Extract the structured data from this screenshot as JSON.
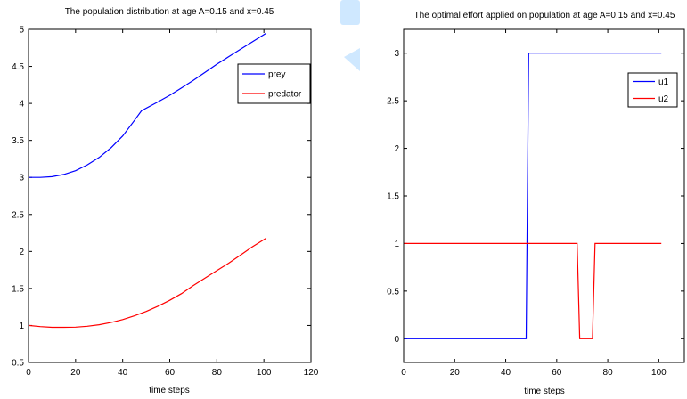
{
  "chart_data": [
    {
      "type": "line",
      "title": "The population distribution at age A=0.15 and x=0.45",
      "xlabel": "time steps",
      "ylabel": "",
      "xlim": [
        0,
        120
      ],
      "ylim": [
        0.5,
        5
      ],
      "xticks": [
        0,
        20,
        40,
        60,
        80,
        100,
        120
      ],
      "xtick_labels": [
        "0",
        "20",
        "40",
        "60",
        "80",
        "100",
        "120"
      ],
      "yticks": [
        0.5,
        1,
        1.5,
        2,
        2.5,
        3,
        3.5,
        4,
        4.5,
        5
      ],
      "ytick_labels": [
        "0.5",
        "1",
        "1.5",
        "2",
        "2.5",
        "3",
        "3.5",
        "4",
        "4.5",
        "5"
      ],
      "legend_position": "top-right",
      "grid": false,
      "series": [
        {
          "name": "prey",
          "color": "#0000ff",
          "x": [
            0,
            5,
            10,
            15,
            20,
            25,
            30,
            35,
            40,
            45,
            48,
            55,
            60,
            65,
            70,
            75,
            80,
            85,
            90,
            95,
            101
          ],
          "y": [
            3.0,
            3.0,
            3.01,
            3.04,
            3.09,
            3.17,
            3.27,
            3.4,
            3.56,
            3.77,
            3.9,
            4.02,
            4.11,
            4.21,
            4.31,
            4.42,
            4.53,
            4.63,
            4.73,
            4.83,
            4.95
          ]
        },
        {
          "name": "predator",
          "color": "#ff0000",
          "x": [
            0,
            5,
            10,
            15,
            20,
            25,
            30,
            35,
            40,
            45,
            50,
            55,
            60,
            65,
            70,
            75,
            80,
            85,
            90,
            95,
            101
          ],
          "y": [
            1.0,
            0.985,
            0.975,
            0.975,
            0.978,
            0.99,
            1.01,
            1.04,
            1.08,
            1.13,
            1.19,
            1.26,
            1.34,
            1.43,
            1.54,
            1.64,
            1.74,
            1.84,
            1.95,
            2.06,
            2.18
          ]
        }
      ]
    },
    {
      "type": "line",
      "title": "The optimal effort applied on population at age A=0.15 and x=0.45",
      "xlabel": "time steps",
      "ylabel": "",
      "xlim": [
        0,
        110
      ],
      "ylim": [
        -0.25,
        3.25
      ],
      "xticks": [
        0,
        20,
        40,
        60,
        80,
        100
      ],
      "xtick_labels": [
        "0",
        "20",
        "40",
        "60",
        "80",
        "100"
      ],
      "yticks": [
        0,
        0.5,
        1,
        1.5,
        2,
        2.5,
        3
      ],
      "ytick_labels": [
        "0",
        "0.5",
        "1",
        "1.5",
        "2",
        "2.5",
        "3"
      ],
      "legend_position": "top-right",
      "grid": false,
      "series": [
        {
          "name": "u1",
          "color": "#0000ff",
          "x": [
            0,
            48,
            49,
            101
          ],
          "y": [
            0,
            0,
            3,
            3
          ]
        },
        {
          "name": "u2",
          "color": "#ff0000",
          "x": [
            0,
            68,
            69,
            74,
            75,
            101
          ],
          "y": [
            1,
            1,
            0,
            0,
            1,
            1
          ]
        }
      ]
    }
  ]
}
